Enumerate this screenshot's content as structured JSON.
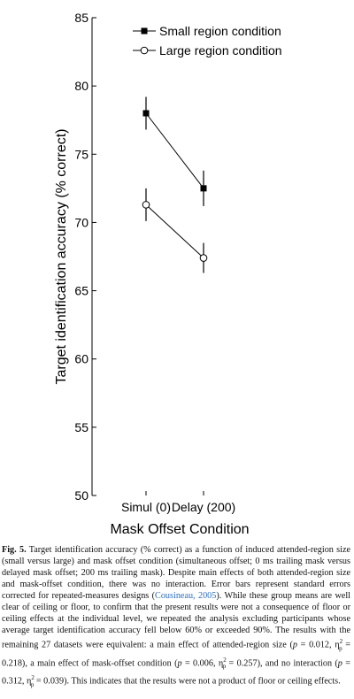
{
  "chart_data": {
    "type": "line",
    "ylabel": "Target identification accuracy (% correct)",
    "xlabel": "Mask Offset Condition",
    "categories": [
      "Simul (0)",
      "Delay (200)"
    ],
    "ylim": [
      50,
      85
    ],
    "yticks": [
      50,
      55,
      60,
      65,
      70,
      75,
      80,
      85
    ],
    "legend_position": "top-right",
    "series": [
      {
        "name": "Small region condition",
        "marker": "filled-square",
        "values": [
          78.0,
          72.5
        ],
        "errors": [
          1.2,
          1.3
        ]
      },
      {
        "name": "Large region condition",
        "marker": "open-circle",
        "values": [
          71.3,
          67.4
        ],
        "errors": [
          1.2,
          1.1
        ]
      }
    ]
  },
  "caption": {
    "label": "Fig. 5.",
    "part1": "Target identification accuracy (% correct) as a function of induced attended-region size (small versus large) and mask offset condition (simultaneous offset; 0 ms trailing mask versus delayed mask offset; 200 ms trailing mask). Despite main effects of both attended-region size and mask-offset condition, there was no interaction. Error bars represent standard errors corrected for repeated-measures designs (",
    "citation": "Cousineau, 2005",
    "part2": "). While these group means are well clear of ceiling or floor, to confirm that the present results were not a consequence of floor or ceiling effects at the individual level, we repeated the analysis excluding participants whose average target identification accuracy fell below 60% or exceeded 90%. The results with the remaining 27 datasets were equivalent: a main effect of attended-region size (",
    "stat1_p": "p",
    "stat1_pval": " = 0.012, ",
    "eta1": "η",
    "eta1_val": " = 0.218",
    "part3": "), a main effect of mask-offset condition (",
    "stat2_p": "p",
    "stat2_pval": " = 0.006, ",
    "eta2": "η",
    "eta2_val": " = 0.257",
    "part4": "), and no interaction (",
    "stat3_p": "p",
    "stat3_pval": " = 0.312, ",
    "eta3": "η",
    "eta3_val": " = 0.039",
    "part5": "). This indicates that the results were not a product of floor or ceiling effects.",
    "eta_sup": "2",
    "eta_sub": "p"
  }
}
